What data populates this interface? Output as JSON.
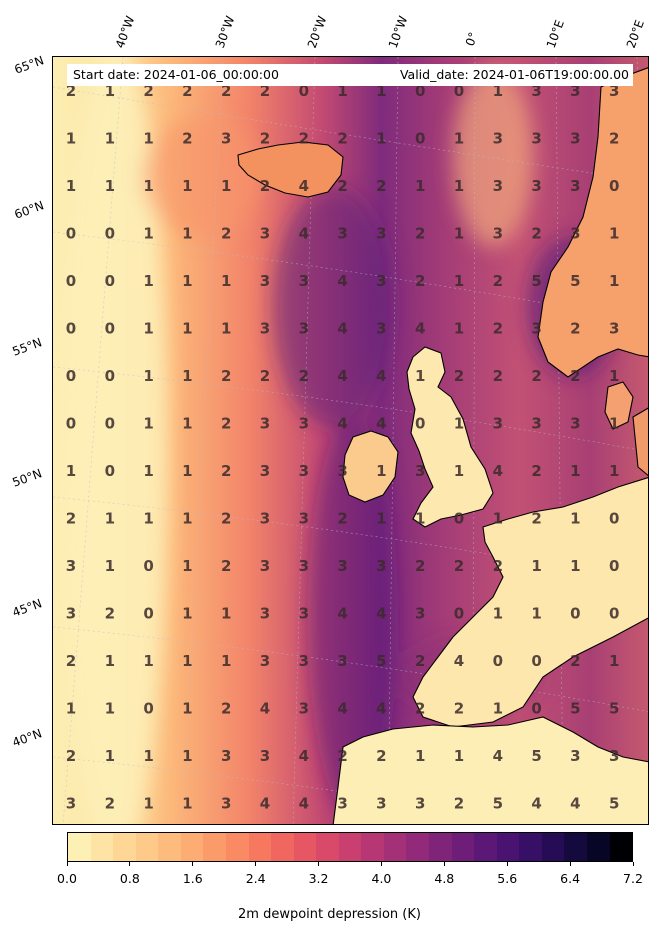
{
  "header": {
    "start_date": "Start date: 2024-01-06_00:00:00",
    "valid_date": "Valid_date: 2024-01-06T19:00:00.00"
  },
  "longitude_labels": [
    "40°W",
    "30°W",
    "20°W",
    "10°W",
    "0°",
    "10°E",
    "20°E"
  ],
  "latitude_labels": [
    "65°N",
    "60°N",
    "55°N",
    "50°N",
    "45°N",
    "40°N"
  ],
  "grid_values": [
    [
      2,
      1,
      2,
      2,
      2,
      2,
      0,
      1,
      1,
      0,
      0,
      1,
      3,
      3,
      3
    ],
    [
      1,
      1,
      1,
      2,
      3,
      2,
      2,
      2,
      1,
      0,
      1,
      3,
      3,
      3,
      2
    ],
    [
      1,
      1,
      1,
      1,
      1,
      2,
      4,
      2,
      2,
      1,
      1,
      3,
      3,
      3,
      0
    ],
    [
      0,
      0,
      1,
      1,
      2,
      3,
      4,
      3,
      3,
      2,
      1,
      3,
      2,
      3,
      1
    ],
    [
      0,
      0,
      1,
      1,
      1,
      3,
      3,
      4,
      3,
      2,
      1,
      2,
      5,
      5,
      1
    ],
    [
      0,
      0,
      1,
      1,
      1,
      3,
      3,
      4,
      3,
      4,
      1,
      2,
      3,
      2,
      3
    ],
    [
      0,
      0,
      1,
      1,
      2,
      2,
      2,
      4,
      4,
      1,
      2,
      2,
      2,
      2,
      1
    ],
    [
      0,
      0,
      1,
      1,
      2,
      3,
      3,
      4,
      4,
      0,
      1,
      3,
      3,
      3,
      1
    ],
    [
      1,
      0,
      1,
      1,
      2,
      3,
      3,
      3,
      1,
      3,
      1,
      4,
      2,
      1,
      1
    ],
    [
      2,
      1,
      1,
      1,
      2,
      3,
      3,
      2,
      1,
      1,
      0,
      1,
      2,
      1,
      0
    ],
    [
      3,
      1,
      0,
      1,
      2,
      3,
      3,
      3,
      3,
      2,
      2,
      2,
      1,
      1,
      0
    ],
    [
      3,
      2,
      0,
      1,
      1,
      3,
      3,
      4,
      4,
      3,
      0,
      1,
      1,
      0,
      0
    ],
    [
      2,
      1,
      1,
      1,
      1,
      3,
      3,
      3,
      5,
      2,
      4,
      0,
      0,
      2,
      1
    ],
    [
      1,
      1,
      0,
      1,
      2,
      4,
      3,
      4,
      4,
      2,
      2,
      1,
      0,
      5,
      5
    ],
    [
      2,
      1,
      1,
      1,
      3,
      3,
      4,
      2,
      2,
      1,
      1,
      4,
      5,
      3,
      3
    ],
    [
      3,
      2,
      1,
      1,
      3,
      4,
      4,
      3,
      3,
      3,
      2,
      5,
      4,
      4,
      5
    ]
  ],
  "colorbar": {
    "label": "2m dewpoint depression (K)",
    "ticks": [
      "0.0",
      "0.8",
      "1.6",
      "2.4",
      "3.2",
      "4.0",
      "4.8",
      "5.6",
      "6.4",
      "7.2"
    ],
    "min": 0.0,
    "max": 7.2,
    "colors": [
      "#fcf0b4",
      "#fde4a5",
      "#fed797",
      "#feca8a",
      "#febb7e",
      "#fdac73",
      "#fc9b6a",
      "#f98a63",
      "#f5785f",
      "#ef675e",
      "#e65763",
      "#d94a6a",
      "#c93f70",
      "#b73775",
      "#a43077",
      "#922a79",
      "#80247a",
      "#6e1e79",
      "#5c1877",
      "#4a1371",
      "#380f66",
      "#260c54",
      "#150a3d",
      "#080626",
      "#000004"
    ]
  },
  "land_color": "#fdf1b8",
  "coastline_color": "#000000"
}
